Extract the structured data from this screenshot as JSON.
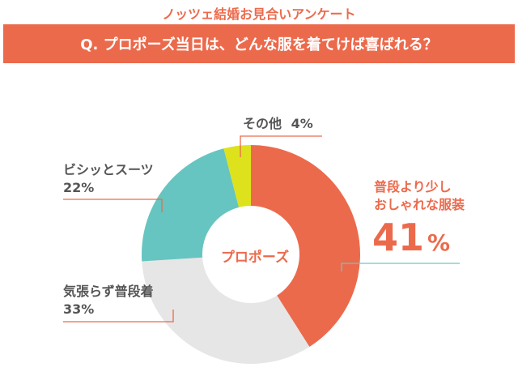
{
  "survey_title": "ノッツェ結婚お見合いアンケート",
  "question": "Q. プロポーズ当日は、どんな服を着てけば喜ばれる？",
  "center_label": "プロポーズ",
  "colors": {
    "accent": "#ec6a4c",
    "teal": "#66c5c0",
    "lightgray": "#e6e6e6",
    "yellow": "#dde21d",
    "leader_teal": "#6ec7c3"
  },
  "chart_data": {
    "type": "pie",
    "donut": true,
    "slices": [
      {
        "label": "普段より少しおしゃれな服装",
        "label_lines": [
          "普段より少し",
          "おしゃれな服装"
        ],
        "value": 41,
        "value_text": "41",
        "unit": "%",
        "color": "#ec6a4c"
      },
      {
        "label": "気張らず普段着",
        "value": 33,
        "value_text": "33%",
        "color": "#e6e6e6"
      },
      {
        "label": "ビシッとスーツ",
        "value": 22,
        "value_text": "22%",
        "color": "#66c5c0"
      },
      {
        "label": "その他",
        "value": 4,
        "value_text": "4%",
        "color": "#dde21d"
      }
    ]
  }
}
